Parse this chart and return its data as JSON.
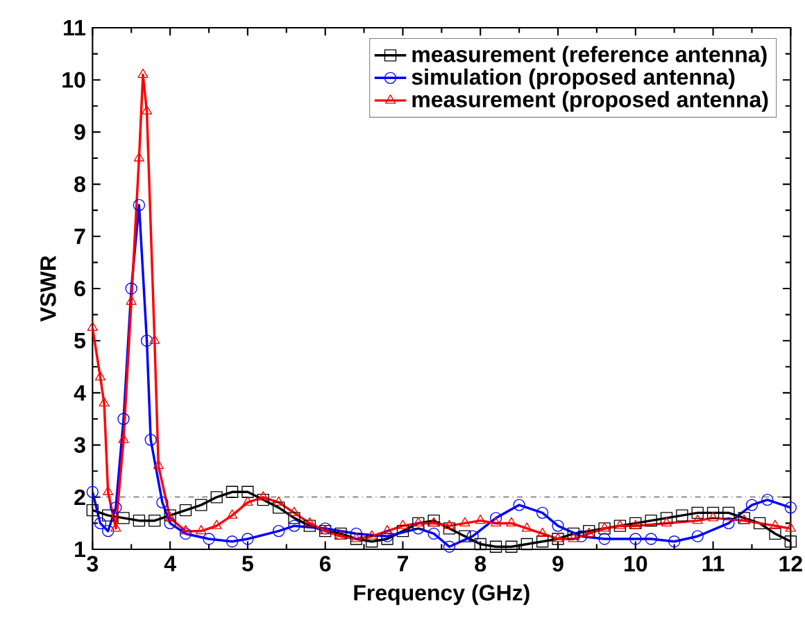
{
  "chart_data": {
    "type": "line",
    "xlabel": "Frequency (GHz)",
    "ylabel": "VSWR",
    "xlim": [
      3,
      12
    ],
    "ylim": [
      1,
      11
    ],
    "xticks": [
      3,
      4,
      5,
      6,
      7,
      8,
      9,
      10,
      11,
      12
    ],
    "yticks": [
      1,
      2,
      3,
      4,
      5,
      6,
      7,
      8,
      9,
      10,
      11
    ],
    "legend": "top right",
    "grid": false,
    "ref_lines": [
      {
        "axis": "y",
        "value": 2,
        "color": "#000000",
        "line_style": "dashdot"
      }
    ],
    "series": [
      {
        "name": "measurement (reference antenna)",
        "color": "#000000",
        "marker": "square",
        "x": [
          3.0,
          3.2,
          3.4,
          3.6,
          3.8,
          4.0,
          4.2,
          4.4,
          4.6,
          4.8,
          5.0,
          5.2,
          5.4,
          5.6,
          5.8,
          6.0,
          6.2,
          6.4,
          6.6,
          6.8,
          7.0,
          7.2,
          7.4,
          7.6,
          7.8,
          8.0,
          8.2,
          8.4,
          8.6,
          8.8,
          9.0,
          9.2,
          9.4,
          9.6,
          9.8,
          10.0,
          10.2,
          10.4,
          10.6,
          10.8,
          11.0,
          11.2,
          11.4,
          11.6,
          11.8,
          12.0
        ],
        "values": [
          1.75,
          1.65,
          1.6,
          1.55,
          1.55,
          1.65,
          1.75,
          1.85,
          2.0,
          2.1,
          2.1,
          1.95,
          1.8,
          1.6,
          1.45,
          1.35,
          1.3,
          1.2,
          1.15,
          1.2,
          1.35,
          1.5,
          1.55,
          1.4,
          1.25,
          1.1,
          1.05,
          1.05,
          1.1,
          1.15,
          1.2,
          1.3,
          1.35,
          1.4,
          1.45,
          1.5,
          1.55,
          1.6,
          1.65,
          1.7,
          1.7,
          1.7,
          1.6,
          1.5,
          1.3,
          1.15
        ]
      },
      {
        "name": "simulation (proposed antenna)",
        "color": "#0000ff",
        "marker": "circle",
        "x": [
          3.0,
          3.1,
          3.2,
          3.3,
          3.4,
          3.5,
          3.6,
          3.7,
          3.75,
          3.9,
          4.0,
          4.2,
          4.5,
          4.8,
          5.0,
          5.4,
          5.6,
          6.0,
          6.4,
          6.8,
          7.2,
          7.4,
          7.6,
          7.9,
          8.2,
          8.5,
          8.8,
          9.0,
          9.3,
          9.6,
          10.0,
          10.2,
          10.5,
          10.8,
          11.2,
          11.5,
          11.7,
          12.0
        ],
        "values": [
          2.1,
          1.5,
          1.35,
          1.8,
          3.5,
          6.0,
          7.6,
          5.0,
          3.1,
          1.9,
          1.5,
          1.3,
          1.2,
          1.15,
          1.2,
          1.35,
          1.45,
          1.4,
          1.3,
          1.25,
          1.4,
          1.3,
          1.05,
          1.25,
          1.6,
          1.85,
          1.7,
          1.45,
          1.25,
          1.2,
          1.2,
          1.2,
          1.15,
          1.25,
          1.5,
          1.85,
          1.95,
          1.8
        ]
      },
      {
        "name": "measurement (proposed antenna)",
        "color": "#ff0000",
        "marker": "triangle",
        "x": [
          3.0,
          3.1,
          3.15,
          3.2,
          3.3,
          3.4,
          3.5,
          3.6,
          3.65,
          3.7,
          3.8,
          3.85,
          4.0,
          4.2,
          4.4,
          4.6,
          4.8,
          5.0,
          5.2,
          5.4,
          5.6,
          5.8,
          6.0,
          6.2,
          6.4,
          6.6,
          6.8,
          7.0,
          7.2,
          7.4,
          7.6,
          7.8,
          8.0,
          8.2,
          8.4,
          8.6,
          8.8,
          9.0,
          9.2,
          9.4,
          9.6,
          9.8,
          10.0,
          10.4,
          10.8,
          11.0,
          11.4,
          11.8,
          12.0
        ],
        "values": [
          5.25,
          4.3,
          3.8,
          2.1,
          1.4,
          3.1,
          5.75,
          8.5,
          10.1,
          9.4,
          5.0,
          2.6,
          1.6,
          1.35,
          1.35,
          1.45,
          1.65,
          1.9,
          2.0,
          1.9,
          1.7,
          1.5,
          1.35,
          1.25,
          1.2,
          1.25,
          1.35,
          1.45,
          1.5,
          1.5,
          1.45,
          1.5,
          1.55,
          1.5,
          1.5,
          1.4,
          1.3,
          1.2,
          1.2,
          1.3,
          1.4,
          1.45,
          1.45,
          1.5,
          1.55,
          1.6,
          1.55,
          1.45,
          1.4
        ]
      }
    ]
  }
}
